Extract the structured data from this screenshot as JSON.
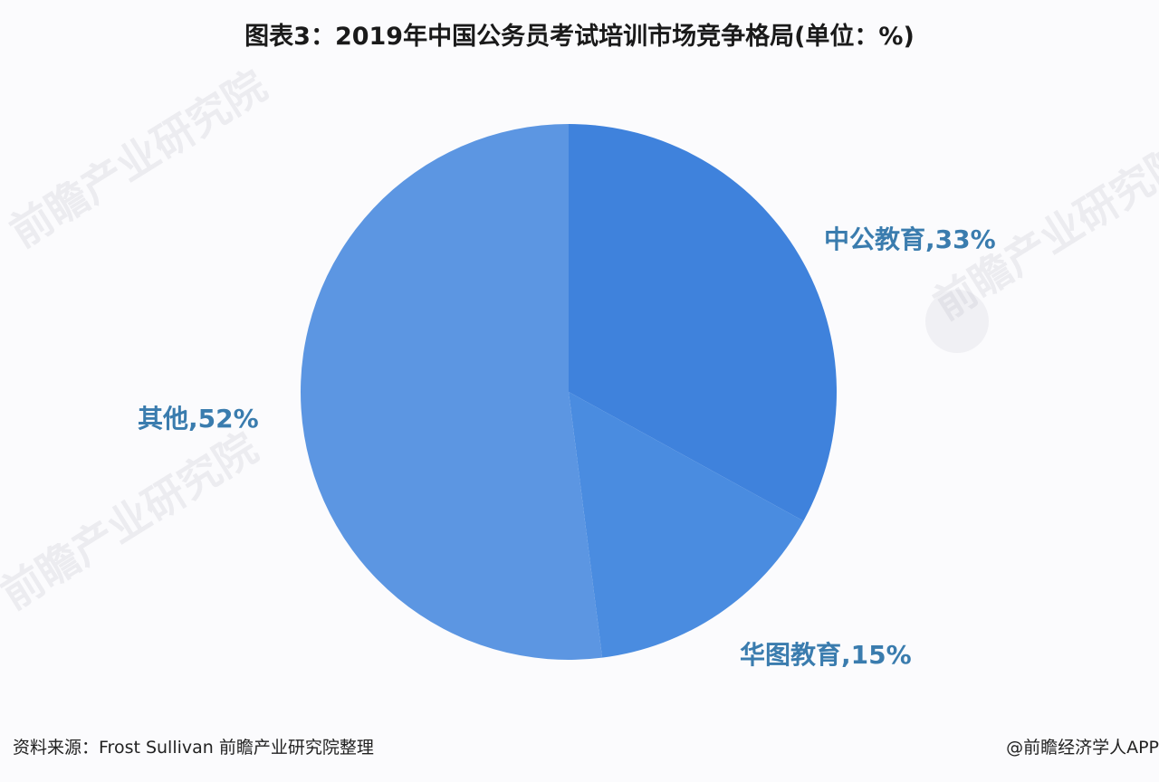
{
  "title": "图表3：2019年中国公务员考试培训市场竞争格局(单位：%)",
  "chart_data": {
    "type": "pie",
    "title": "图表3：2019年中国公务员考试培训市场竞争格局(单位：%)",
    "unit": "%",
    "categories": [
      "中公教育",
      "华图教育",
      "其他"
    ],
    "values": [
      33,
      15,
      52
    ],
    "colors": [
      "#3f82dc",
      "#4a8ce0",
      "#5c96e2"
    ],
    "start_angle": "12 o'clock",
    "direction": "clockwise",
    "labels": [
      "中公教育,33%",
      "华图教育,15%",
      "其他,52%"
    ],
    "legend": "none",
    "center": [
      628,
      433
    ],
    "radius": 296
  },
  "labels": {
    "zhonggong": "中公教育,33%",
    "huatu": "华图教育,15%",
    "other": "其他,52%"
  },
  "label_color": "#3a7cae",
  "watermark_text": "前瞻产业研究院",
  "footer": {
    "source": "资料来源：Frost Sullivan 前瞻产业研究院整理",
    "credit": "@前瞻经济学人APP"
  }
}
